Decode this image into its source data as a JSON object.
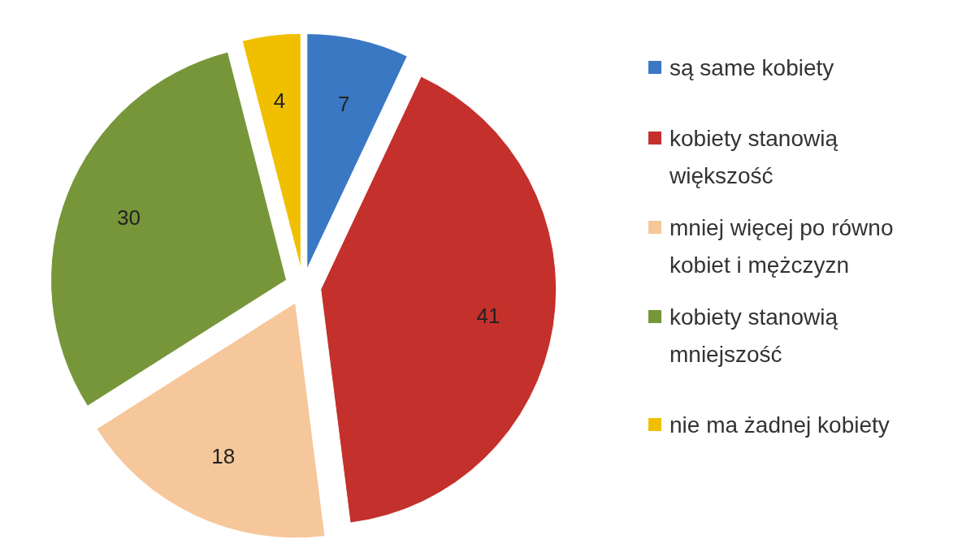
{
  "chart_data": {
    "type": "pie",
    "categories": [
      "są same kobiety",
      "kobiety stanowią większość",
      "mniej więcej po równo kobiet i mężczyzn",
      "kobiety stanowią mniejszość",
      "nie ma żadnej kobiety"
    ],
    "values": [
      7,
      41,
      18,
      30,
      4
    ],
    "colors": [
      "#3a78c4",
      "#c4302b",
      "#f6c79a",
      "#77963a",
      "#f0c000"
    ],
    "data_labels": true,
    "legend": "right"
  }
}
